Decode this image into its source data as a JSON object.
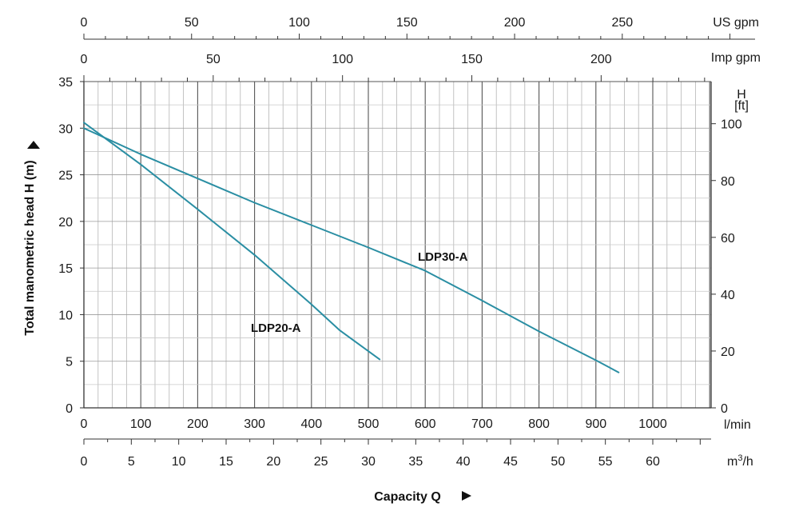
{
  "chart_data": {
    "type": "line",
    "xlabel": "Capacity Q",
    "ylabel": "Total manometric head H (m)",
    "x": {
      "unit": "l/min",
      "lim": [
        0,
        1105
      ],
      "ticks": [
        0,
        100,
        200,
        300,
        400,
        500,
        600,
        700,
        800,
        900,
        1000
      ]
    },
    "y": {
      "unit": "m",
      "lim": [
        0,
        35
      ],
      "ticks": [
        0,
        5,
        10,
        15,
        20,
        25,
        30,
        35
      ]
    },
    "y_right": {
      "title_line1": "H",
      "title_line2": "[ft]",
      "ticks": [
        0,
        20,
        40,
        60,
        80,
        100
      ]
    },
    "x_top_us": {
      "unit": "US gpm",
      "ticks": [
        0,
        50,
        100,
        150,
        200,
        250
      ]
    },
    "x_top_imp": {
      "unit": "Imp gpm",
      "ticks": [
        0,
        50,
        100,
        150,
        200
      ]
    },
    "x_bottom_m3h": {
      "unit_base": "m",
      "unit_sup": "3",
      "unit_tail": "/h",
      "ticks": [
        0,
        5,
        10,
        15,
        20,
        25,
        30,
        35,
        40,
        45,
        50,
        55,
        60
      ]
    },
    "grid": true,
    "series": [
      {
        "name": "LDP20-A",
        "color": "#2a8ea3",
        "x": [
          0,
          100,
          200,
          300,
          400,
          450,
          520
        ],
        "y": [
          30.6,
          26.1,
          21.3,
          16.4,
          11.1,
          8.3,
          5.2
        ]
      },
      {
        "name": "LDP30-A",
        "color": "#2a8ea3",
        "x": [
          0,
          100,
          200,
          300,
          400,
          500,
          600,
          700,
          800,
          900,
          940
        ],
        "y": [
          30.0,
          27.2,
          24.6,
          22.0,
          19.6,
          17.2,
          14.7,
          11.5,
          8.2,
          5.1,
          3.8
        ]
      }
    ]
  }
}
